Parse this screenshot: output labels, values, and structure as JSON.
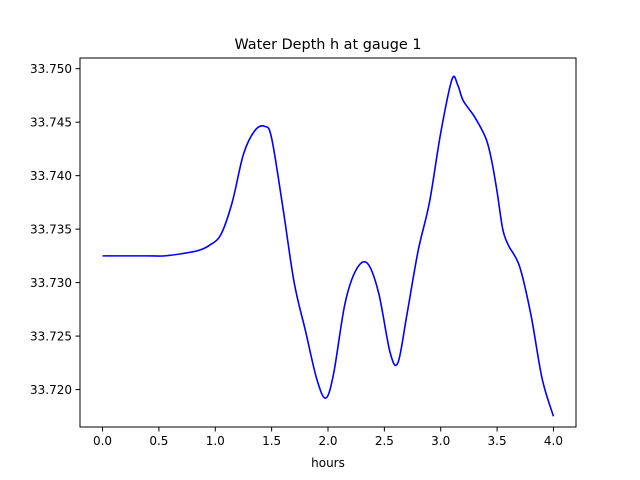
{
  "chart_data": {
    "type": "line",
    "title": "Water Depth h at gauge 1",
    "xlabel": "hours",
    "ylabel": "",
    "xlim": [
      -0.2,
      4.2
    ],
    "ylim": [
      33.7165,
      33.751
    ],
    "xticks": [
      0.0,
      0.5,
      1.0,
      1.5,
      2.0,
      2.5,
      3.0,
      3.5,
      4.0
    ],
    "xtick_labels": [
      "0.0",
      "0.5",
      "1.0",
      "1.5",
      "2.0",
      "2.5",
      "3.0",
      "3.5",
      "4.0"
    ],
    "yticks": [
      33.72,
      33.725,
      33.73,
      33.735,
      33.74,
      33.745,
      33.75
    ],
    "ytick_labels": [
      "33.720",
      "33.725",
      "33.730",
      "33.735",
      "33.740",
      "33.745",
      "33.750"
    ],
    "grid": false,
    "legend": "none",
    "series": [
      {
        "color": "#0000ff",
        "x": [
          0.0,
          0.2,
          0.4,
          0.55,
          0.7,
          0.85,
          0.95,
          1.05,
          1.15,
          1.25,
          1.35,
          1.44,
          1.5,
          1.6,
          1.7,
          1.8,
          1.9,
          1.98,
          2.05,
          2.15,
          2.25,
          2.35,
          2.45,
          2.55,
          2.62,
          2.7,
          2.8,
          2.9,
          3.0,
          3.1,
          3.15,
          3.2,
          3.3,
          3.4,
          3.45,
          3.5,
          3.55,
          3.6,
          3.7,
          3.8,
          3.9,
          4.0
        ],
        "y": [
          33.7325,
          33.7325,
          33.7325,
          33.7325,
          33.7327,
          33.733,
          33.7335,
          33.7345,
          33.7375,
          33.742,
          33.7442,
          33.7446,
          33.7435,
          33.737,
          33.73,
          33.7255,
          33.721,
          33.7192,
          33.7215,
          33.728,
          33.7312,
          33.7318,
          33.729,
          33.7235,
          33.7225,
          33.727,
          33.733,
          33.7375,
          33.744,
          33.749,
          33.7485,
          33.747,
          33.7455,
          33.7435,
          33.7415,
          33.7385,
          33.735,
          33.7335,
          33.7315,
          33.727,
          33.721,
          33.7175
        ]
      }
    ]
  }
}
